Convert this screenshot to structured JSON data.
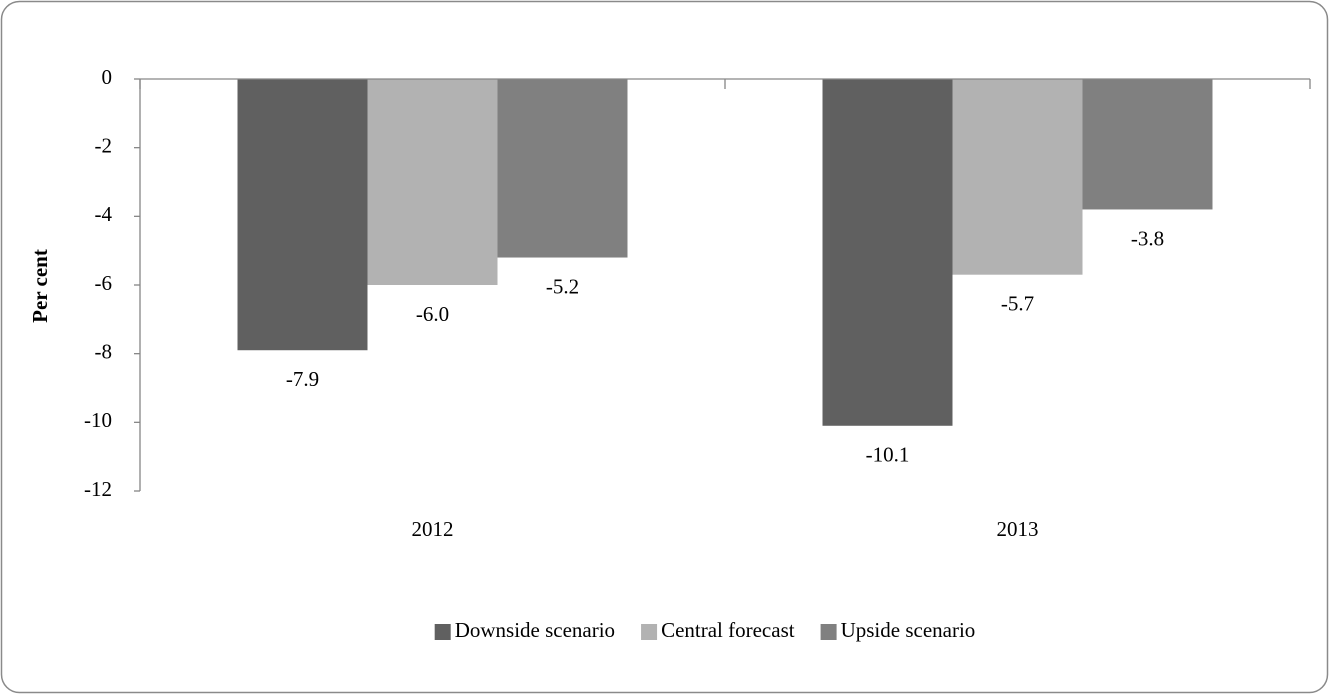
{
  "chart_data": {
    "type": "bar",
    "y_label": "Per cent",
    "categories": [
      "2012",
      "2013"
    ],
    "series": [
      {
        "name": "Downside scenario",
        "color": "#606060",
        "values": [
          -7.9,
          -10.1
        ],
        "value_labels": [
          "-7.9",
          "-10.1"
        ]
      },
      {
        "name": "Central forecast",
        "color": "#b2b2b2",
        "values": [
          -6.0,
          -5.7
        ],
        "value_labels": [
          "-6.0",
          "-5.7"
        ]
      },
      {
        "name": "Upside scenario",
        "color": "#808080",
        "values": [
          -5.2,
          -3.8
        ],
        "value_labels": [
          "-5.2",
          "-3.8"
        ]
      }
    ],
    "ylim": [
      -12,
      0
    ],
    "yticks": [
      0,
      -2,
      -4,
      -6,
      -8,
      -10,
      -12
    ],
    "grid": false,
    "legend": "bottom"
  }
}
